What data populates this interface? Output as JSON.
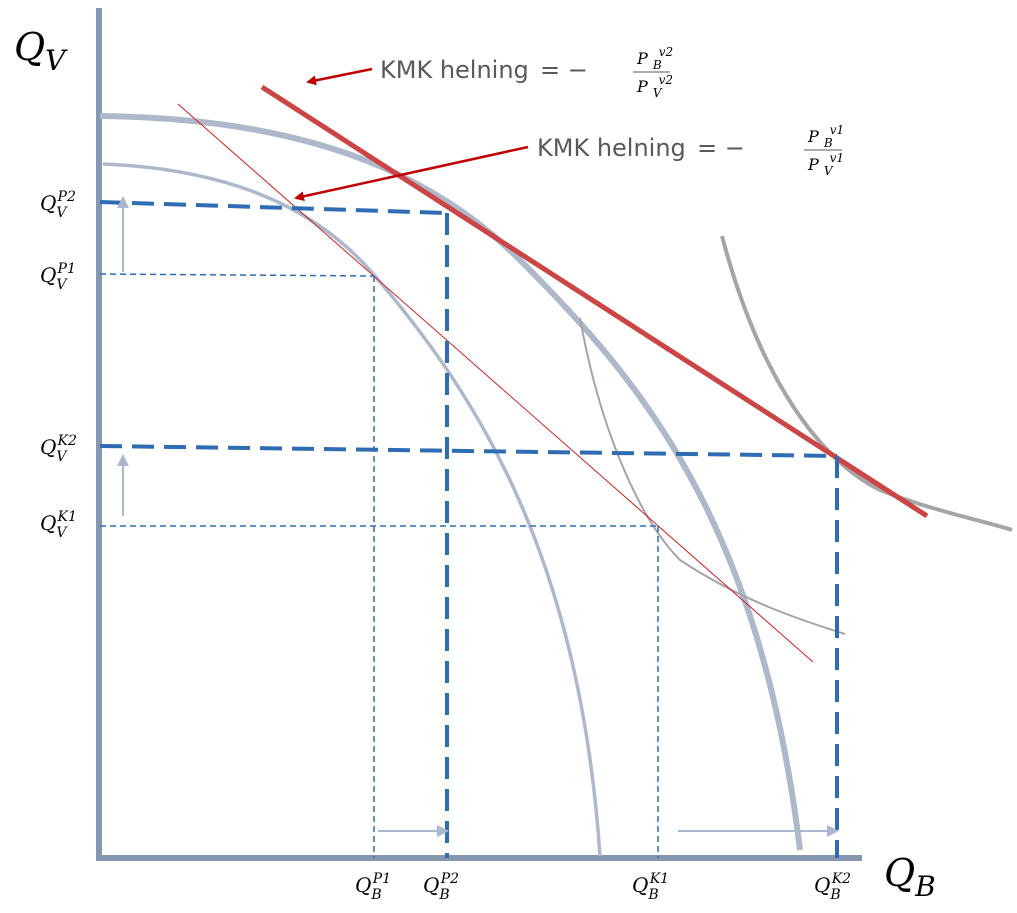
{
  "axes": {
    "y_symbol": "Q",
    "y_subscript": "V",
    "x_symbol": "Q",
    "x_subscript": "B"
  },
  "annotations": {
    "top": {
      "text": "KMK helning",
      "equals_minus": "= −",
      "numerator_base": "P",
      "numerator_sub": "B",
      "numerator_sup": "v2",
      "denominator_base": "P",
      "denominator_sub": "V",
      "denominator_sup": "v2"
    },
    "second": {
      "text": "KMK helning",
      "equals_minus": "= −",
      "numerator_base": "P",
      "numerator_sub": "B",
      "numerator_sup": "v1",
      "denominator_base": "P",
      "denominator_sub": "V",
      "denominator_sup": "v1"
    }
  },
  "y_ticks": [
    {
      "base": "Q",
      "sub": "V",
      "sup": "P2"
    },
    {
      "base": "Q",
      "sub": "V",
      "sup": "P1"
    },
    {
      "base": "Q",
      "sub": "V",
      "sup": "K2"
    },
    {
      "base": "Q",
      "sub": "V",
      "sup": "K1"
    }
  ],
  "x_ticks": [
    {
      "base": "Q",
      "sub": "B",
      "sup": "P1"
    },
    {
      "base": "Q",
      "sub": "B",
      "sup": "P2"
    },
    {
      "base": "Q",
      "sub": "B",
      "sup": "K1"
    },
    {
      "base": "Q",
      "sub": "B",
      "sup": "K2"
    }
  ],
  "colors": {
    "axis": "#8496B0",
    "ppf": "#ADB9CA",
    "indifference": "#A5A5A5",
    "price_line_new": "#CC4444",
    "price_line_old": "#CC2222",
    "dashed": "#2E6DB4",
    "arrow_red": "#C00000",
    "arrow_gray": "#A9B8CE"
  }
}
